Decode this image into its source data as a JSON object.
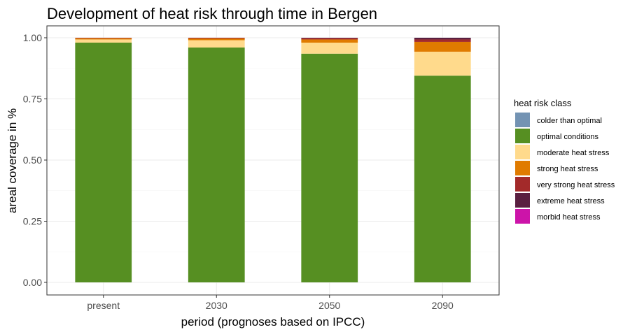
{
  "chart_data": {
    "type": "bar",
    "stacked": true,
    "title": "Development of heat risk through time in Bergen",
    "xlabel": "period (prognoses based on IPCC)",
    "ylabel": "areal coverage in %",
    "ylim": [
      0,
      1
    ],
    "yticks": [
      "0.00",
      "0.25",
      "0.50",
      "0.75",
      "1.00"
    ],
    "grid": true,
    "legend_position": "right",
    "legend_title": "heat risk class",
    "categories": [
      "present",
      "2030",
      "2050",
      "2090"
    ],
    "series": [
      {
        "name": "colder than optimal",
        "color": "#7393B3",
        "values": [
          0.0,
          0.0,
          0.0,
          0.0
        ]
      },
      {
        "name": "optimal conditions",
        "color": "#568F22",
        "values": [
          0.98,
          0.96,
          0.935,
          0.845
        ]
      },
      {
        "name": "moderate heat stress",
        "color": "#FFDA8C",
        "values": [
          0.013,
          0.03,
          0.045,
          0.098
        ]
      },
      {
        "name": "strong heat stress",
        "color": "#E07B00",
        "values": [
          0.005,
          0.007,
          0.013,
          0.04
        ]
      },
      {
        "name": "very strong heat stress",
        "color": "#A32A2A",
        "values": [
          0.002,
          0.003,
          0.005,
          0.01
        ]
      },
      {
        "name": "extreme heat stress",
        "color": "#5A1F40",
        "values": [
          0.0,
          0.0,
          0.002,
          0.007
        ]
      },
      {
        "name": "morbid heat stress",
        "color": "#CC14A9",
        "values": [
          0.0,
          0.0,
          0.0,
          0.0
        ]
      }
    ]
  }
}
